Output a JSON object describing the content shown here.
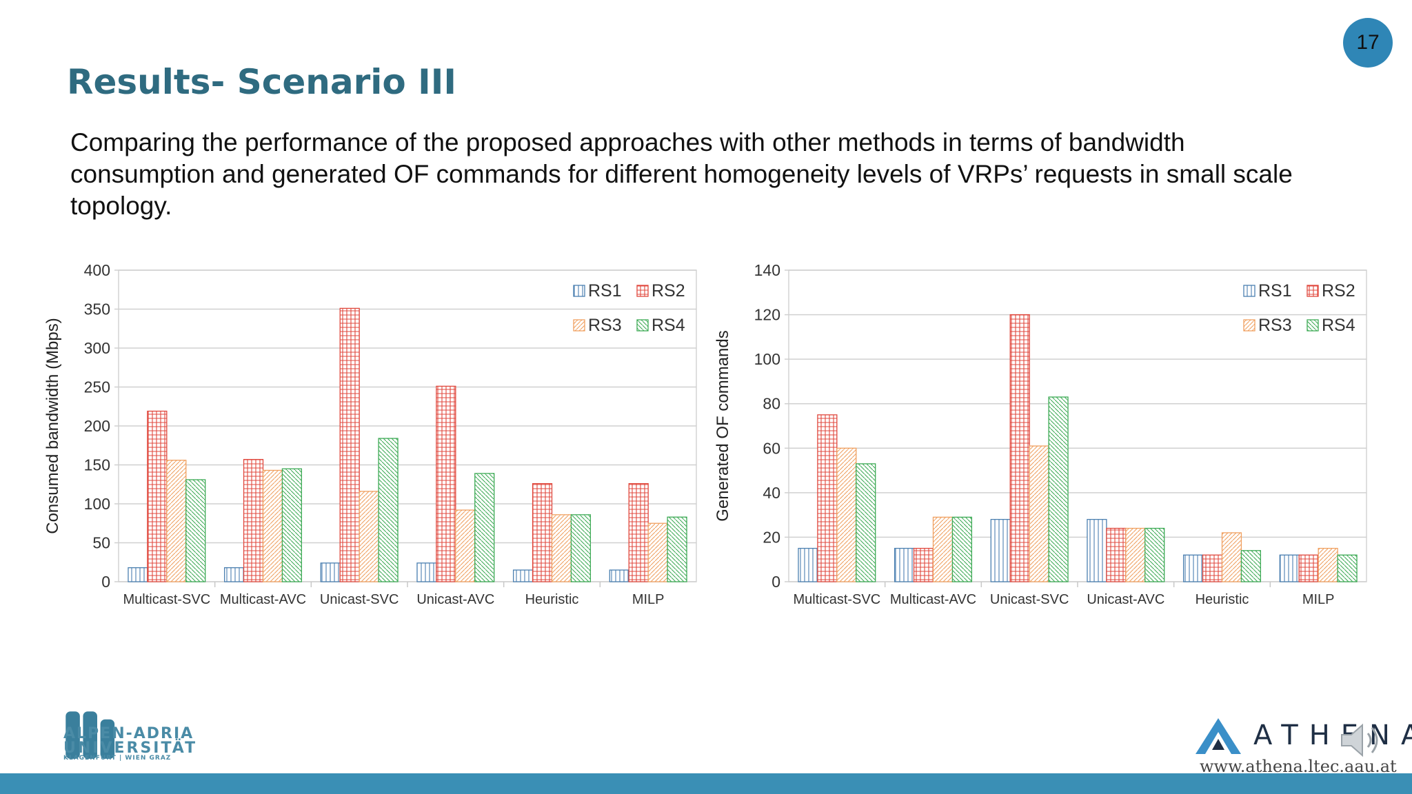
{
  "slide": {
    "title": "Results- Scenario III",
    "description": "Comparing the performance of the proposed approaches with other methods in terms of bandwidth consumption and generated OF commands for different homogeneity levels of VRPs’ requests in small scale topology.",
    "page_number": "17"
  },
  "footer": {
    "aau_line1": "ALPEN-ADRIA",
    "aau_line2": "UNIVERSITÄT",
    "aau_line3": "KLAGENFURT | WIEN GRAZ",
    "athena_name": "ATHENA",
    "athena_url": "www.athena.ltec.aau.at"
  },
  "series_colors": {
    "RS1": "#4a7fb0",
    "RS2": "#e0473c",
    "RS3": "#f0a060",
    "RS4": "#3daa55"
  },
  "chart_data": [
    {
      "type": "bar",
      "categories": [
        "Multicast-SVC",
        "Multicast-AVC",
        "Unicast-SVC",
        "Unicast-AVC",
        "Heuristic",
        "MILP"
      ],
      "series": [
        {
          "name": "RS1",
          "values": [
            18,
            18,
            24,
            24,
            15,
            15
          ]
        },
        {
          "name": "RS2",
          "values": [
            219,
            157,
            351,
            251,
            126,
            126
          ]
        },
        {
          "name": "RS3",
          "values": [
            156,
            143,
            116,
            92,
            86,
            75
          ]
        },
        {
          "name": "RS4",
          "values": [
            131,
            145,
            184,
            139,
            86,
            83
          ]
        }
      ],
      "ylabel": "Consumed bandwidth (Mbps)",
      "ylim": [
        0,
        400
      ],
      "yticks": [
        0,
        50,
        100,
        150,
        200,
        250,
        300,
        350,
        400
      ],
      "grid": true,
      "legend": "top-right"
    },
    {
      "type": "bar",
      "categories": [
        "Multicast-SVC",
        "Multicast-AVC",
        "Unicast-SVC",
        "Unicast-AVC",
        "Heuristic",
        "MILP"
      ],
      "series": [
        {
          "name": "RS1",
          "values": [
            15,
            15,
            28,
            28,
            12,
            12
          ]
        },
        {
          "name": "RS2",
          "values": [
            75,
            15,
            120,
            24,
            12,
            12
          ]
        },
        {
          "name": "RS3",
          "values": [
            60,
            29,
            61,
            24,
            22,
            15
          ]
        },
        {
          "name": "RS4",
          "values": [
            53,
            29,
            83,
            24,
            14,
            12
          ]
        }
      ],
      "ylabel": "Generated OF commands",
      "ylim": [
        0,
        140
      ],
      "yticks": [
        0,
        20,
        40,
        60,
        80,
        100,
        120,
        140
      ],
      "grid": true,
      "legend": "top-right"
    }
  ]
}
